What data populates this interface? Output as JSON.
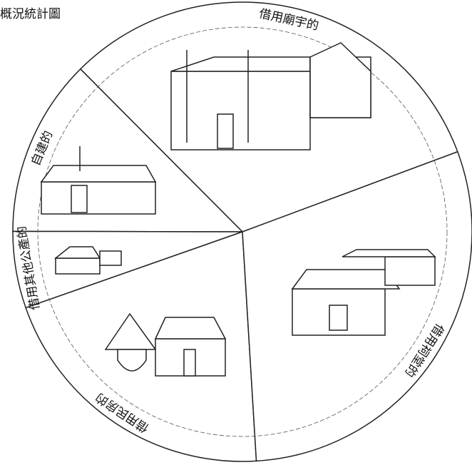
{
  "chart_data": {
    "type": "pie",
    "title": "概況統計圖",
    "categories": [
      "借用廟宇的",
      "自建的",
      "借用其他公產的",
      "借用民房的",
      "借用祠堂的"
    ],
    "values": [
      31.8,
      12.5,
      5.4,
      20.6,
      29.7
    ],
    "color": "#ffffff"
  }
}
